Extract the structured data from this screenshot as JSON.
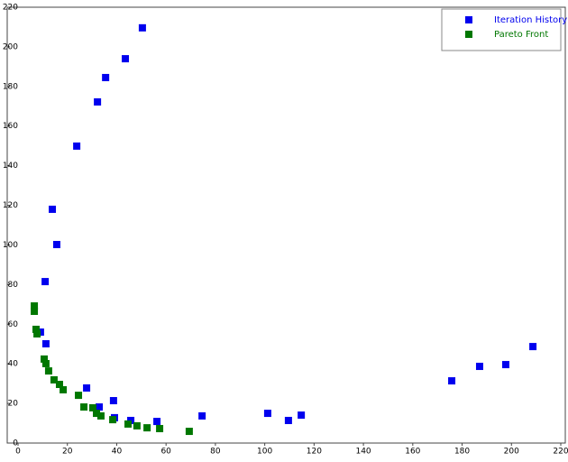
{
  "chart_data": {
    "type": "scatter",
    "xlim": [
      0,
      220
    ],
    "ylim": [
      0,
      220
    ],
    "xticks": [
      0,
      20,
      40,
      60,
      80,
      100,
      120,
      140,
      160,
      180,
      200,
      220
    ],
    "yticks": [
      0,
      20,
      40,
      60,
      80,
      100,
      120,
      140,
      160,
      180,
      200,
      220
    ],
    "legend": "upper right",
    "grid": false,
    "series": [
      {
        "name": "Iteration History",
        "color": "#0000ee",
        "x": [
          50.4,
          43.5,
          35.5,
          32.2,
          23.8,
          13.9,
          15.7,
          11,
          9.1,
          11.3,
          27.8,
          38.7,
          32.9,
          39.1,
          45.7,
          56.3,
          74.6,
          101.2,
          109.6,
          114.8,
          175.8,
          187.1,
          197.7,
          208.7
        ],
        "values": [
          209.6,
          194,
          184.5,
          172.2,
          149.9,
          118,
          100.2,
          81.5,
          56,
          50.1,
          27.8,
          21.4,
          18.2,
          12.8,
          11.4,
          10.9,
          13.7,
          15,
          11.4,
          14.1,
          31.4,
          38.7,
          39.6,
          48.7
        ]
      },
      {
        "name": "Pareto Front",
        "color": "#007700",
        "x": [
          6.6,
          6.6,
          7.3,
          7.7,
          10.6,
          11.3,
          12.4,
          14.6,
          16.8,
          18.3,
          24.5,
          26.7,
          30.3,
          31.8,
          33.6,
          38.4,
          44.6,
          48.2,
          52.3,
          57.4,
          69.4
        ],
        "values": [
          69.2,
          66.5,
          57.4,
          55.1,
          42.4,
          40.1,
          36.4,
          31.9,
          29.6,
          26.9,
          24.1,
          18.2,
          17.8,
          15,
          13.7,
          11.8,
          9.6,
          8.7,
          7.7,
          7.3,
          5.9
        ]
      }
    ]
  }
}
